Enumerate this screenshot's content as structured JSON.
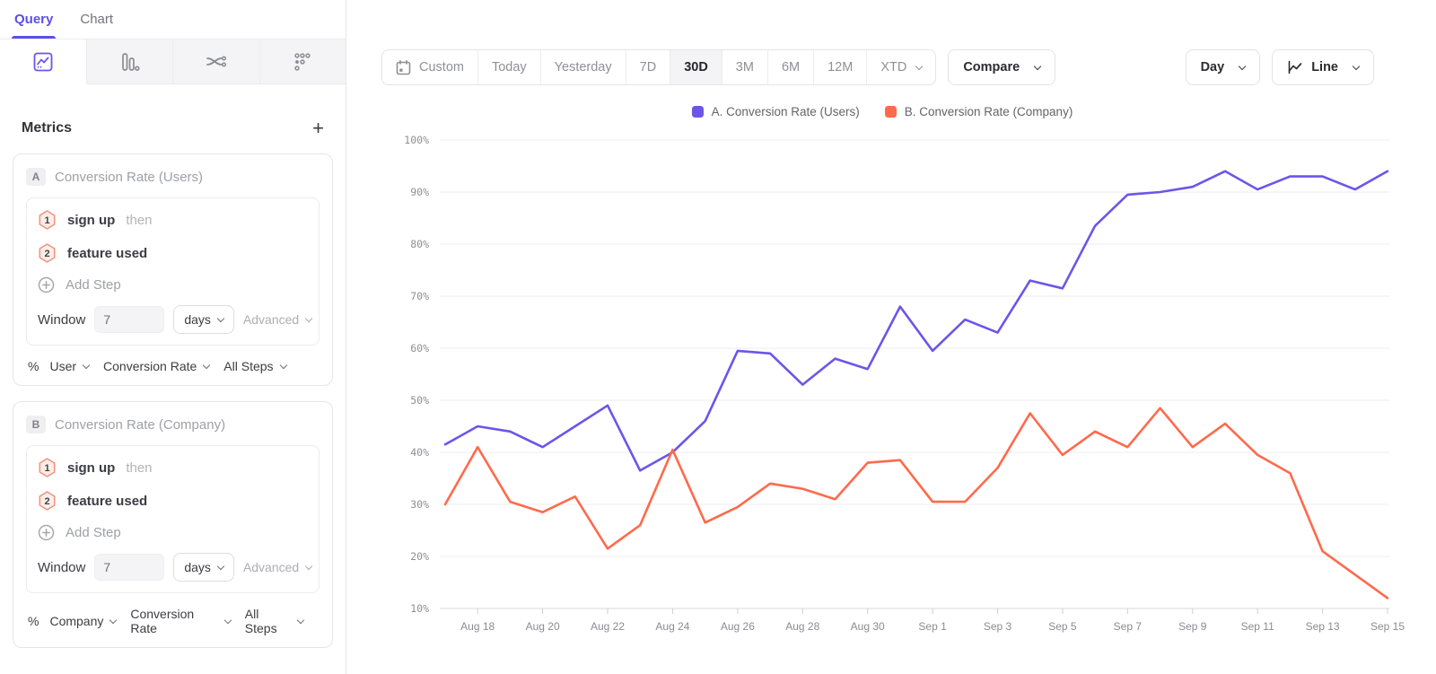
{
  "sidebar": {
    "tabs": [
      {
        "label": "Query",
        "active": true
      },
      {
        "label": "Chart",
        "active": false
      }
    ],
    "chart_types": [
      {
        "name": "line-chart",
        "active": true
      },
      {
        "name": "bar-chart",
        "active": false
      },
      {
        "name": "flows",
        "active": false
      },
      {
        "name": "funnel-dots",
        "active": false
      }
    ],
    "metrics": {
      "title": "Metrics",
      "add_label": "+"
    },
    "cards": [
      {
        "badge": "A",
        "title": "Conversion Rate (Users)",
        "steps": [
          {
            "num": "1",
            "event": "sign up",
            "suffix": "then"
          },
          {
            "num": "2",
            "event": "feature used",
            "suffix": ""
          }
        ],
        "add_step_label": "Add Step",
        "window": {
          "label": "Window",
          "value": "7",
          "unit": "days",
          "advanced_label": "Advanced"
        },
        "measure": {
          "symbol": "%",
          "entity": "User",
          "metric": "Conversion Rate",
          "steps": "All Steps"
        }
      },
      {
        "badge": "B",
        "title": "Conversion Rate (Company)",
        "steps": [
          {
            "num": "1",
            "event": "sign up",
            "suffix": "then"
          },
          {
            "num": "2",
            "event": "feature used",
            "suffix": ""
          }
        ],
        "add_step_label": "Add Step",
        "window": {
          "label": "Window",
          "value": "7",
          "unit": "days",
          "advanced_label": "Advanced"
        },
        "measure": {
          "symbol": "%",
          "entity": "Company",
          "metric": "Conversion Rate",
          "steps": "All Steps"
        }
      }
    ]
  },
  "toolbar": {
    "ranges": [
      {
        "label": "Custom",
        "icon": "calendar",
        "active": false,
        "chevron": false
      },
      {
        "label": "Today",
        "active": false,
        "chevron": false
      },
      {
        "label": "Yesterday",
        "active": false,
        "chevron": false
      },
      {
        "label": "7D",
        "active": false,
        "chevron": false
      },
      {
        "label": "30D",
        "active": true,
        "chevron": false
      },
      {
        "label": "3M",
        "active": false,
        "chevron": false
      },
      {
        "label": "6M",
        "active": false,
        "chevron": false
      },
      {
        "label": "12M",
        "active": false,
        "chevron": false
      },
      {
        "label": "XTD",
        "active": false,
        "chevron": true
      }
    ],
    "compare_label": "Compare",
    "interval_label": "Day",
    "chart_style_label": "Line"
  },
  "legend": [
    {
      "label": "A. Conversion Rate (Users)",
      "color": "#6C55E9"
    },
    {
      "label": "B. Conversion Rate (Company)",
      "color": "#FF6A4B"
    }
  ],
  "chart_data": {
    "type": "line",
    "title": "",
    "xlabel": "",
    "ylabel": "",
    "ylim": [
      10,
      100
    ],
    "y_ticks": [
      "100%",
      "90%",
      "80%",
      "70%",
      "60%",
      "50%",
      "40%",
      "30%",
      "20%",
      "10%"
    ],
    "grid": true,
    "legend_position": "top-center",
    "x": [
      "Aug 17",
      "Aug 18",
      "Aug 19",
      "Aug 20",
      "Aug 21",
      "Aug 22",
      "Aug 23",
      "Aug 24",
      "Aug 25",
      "Aug 26",
      "Aug 27",
      "Aug 28",
      "Aug 29",
      "Aug 30",
      "Aug 31",
      "Sep 1",
      "Sep 2",
      "Sep 3",
      "Sep 4",
      "Sep 5",
      "Sep 6",
      "Sep 7",
      "Sep 8",
      "Sep 9",
      "Sep 10",
      "Sep 11",
      "Sep 12",
      "Sep 13",
      "Sep 14",
      "Sep 15"
    ],
    "x_tick_labels": [
      "Aug 18",
      "Aug 20",
      "Aug 22",
      "Aug 24",
      "Aug 26",
      "Aug 28",
      "Aug 30",
      "Sep 1",
      "Sep 3",
      "Sep 5",
      "Sep 7",
      "Sep 9",
      "Sep 11",
      "Sep 13",
      "Sep 15"
    ],
    "series": [
      {
        "name": "A. Conversion Rate (Users)",
        "color": "#6C55E9",
        "values": [
          41.5,
          45,
          44,
          41,
          45,
          49,
          36.5,
          40,
          46,
          59.5,
          59,
          53,
          58,
          56,
          68,
          59.5,
          65.5,
          63,
          73,
          71.5,
          83.5,
          89.5,
          90,
          91,
          94,
          90.5,
          93,
          93,
          90.5,
          94
        ]
      },
      {
        "name": "B. Conversion Rate (Company)",
        "color": "#FF6A4B",
        "values": [
          30,
          41,
          30.5,
          28.5,
          31.5,
          21.5,
          26,
          40.5,
          26.5,
          29.5,
          34,
          33,
          31,
          38,
          38.5,
          30.5,
          30.5,
          37,
          47.5,
          39.5,
          44,
          41,
          48.5,
          41,
          45.5,
          39.5,
          36,
          21,
          16.5,
          12
        ]
      }
    ]
  }
}
